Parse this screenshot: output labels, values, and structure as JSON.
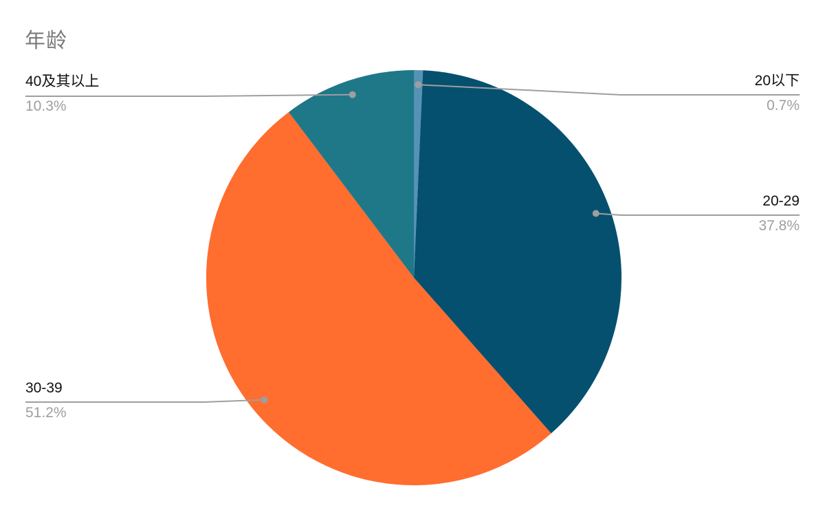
{
  "page": {
    "background": "#ffffff"
  },
  "chart_data": {
    "type": "pie",
    "title": "年龄",
    "labels": [
      "20以下",
      "20-29",
      "30-39",
      "40及其以上"
    ],
    "values": [
      0.7,
      37.8,
      51.2,
      10.3
    ],
    "percent_labels": [
      "0.7%",
      "37.8%",
      "51.2%",
      "10.3%"
    ],
    "colors": [
      "#5592b5",
      "#05506f",
      "#ff6d2f",
      "#1e7888"
    ],
    "start_angle_deg": 0,
    "direction": "clockwise",
    "legend_position": "labeled-callouts",
    "title_color": "#7b7b7b",
    "label_color": "#111111",
    "percent_color": "#9e9e9e",
    "callout_line_color": "#9e9e9e"
  }
}
